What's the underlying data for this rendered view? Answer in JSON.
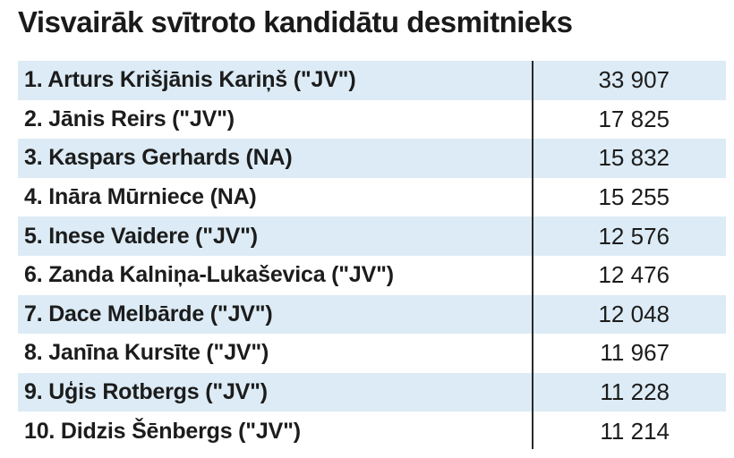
{
  "title": "Visvairāk svītroto kandidātu desmitnieks",
  "chart_data": {
    "type": "table",
    "title": "Visvairāk svītroto kandidātu desmitnieks",
    "rows": [
      {
        "name": "1. Arturs Krišjānis Kariņš (\"JV\")",
        "value": "33 907"
      },
      {
        "name": "2. Jānis Reirs (\"JV\")",
        "value": "17 825"
      },
      {
        "name": "3. Kaspars Gerhards (NA)",
        "value": "15 832"
      },
      {
        "name": "4. Ināra Mūrniece (NA)",
        "value": "15 255"
      },
      {
        "name": "5. Inese Vaidere (\"JV\")",
        "value": "12 576"
      },
      {
        "name": "6. Zanda Kalniņa-Lukaševica (\"JV\")",
        "value": "12 476"
      },
      {
        "name": "7. Dace Melbārde (\"JV\")",
        "value": "12 048"
      },
      {
        "name": "8. Janīna Kursīte (\"JV\")",
        "value": "11 967"
      },
      {
        "name": "9. Uģis Rotbergs (\"JV\")",
        "value": "11 228"
      },
      {
        "name": "10. Didzis Šēnbergs (\"JV\")",
        "value": "11 214"
      }
    ]
  },
  "colors": {
    "row_shade": "#dcebf5",
    "divider": "#2a2a2a",
    "text": "#1c1c1c"
  }
}
